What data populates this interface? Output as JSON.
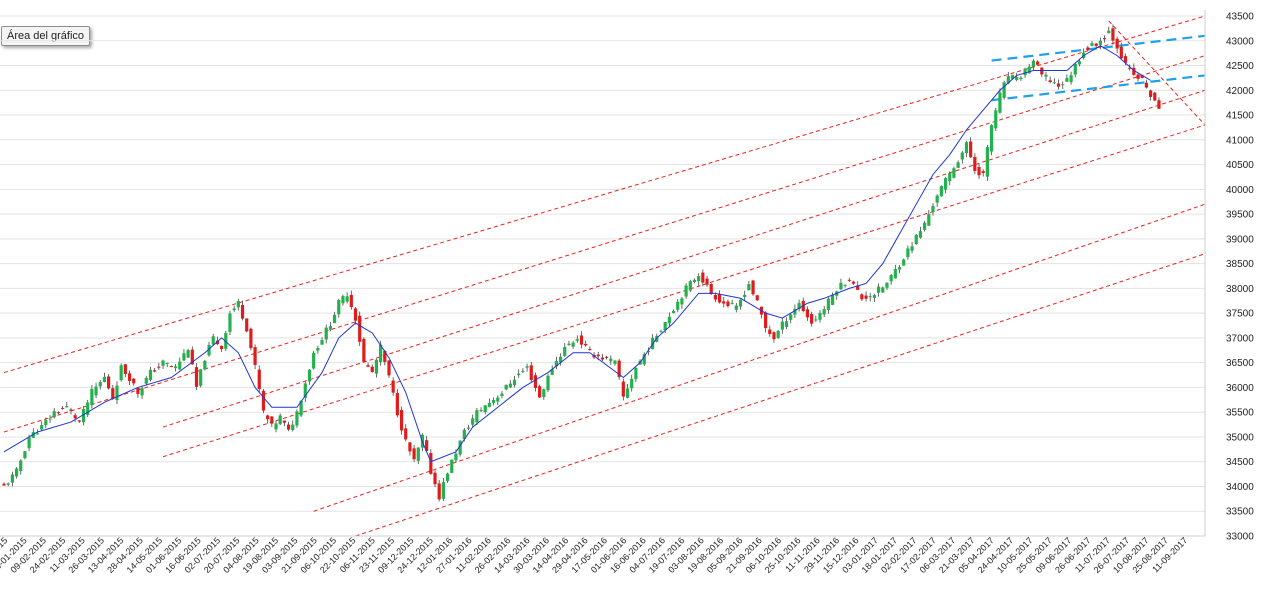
{
  "tooltip": "Área del gráfico",
  "chart_data": {
    "type": "candlestick",
    "y_ticks": [
      "33000",
      "33500",
      "34000",
      "34500",
      "35000",
      "35500",
      "36000",
      "36500",
      "37000",
      "37500",
      "38000",
      "38500",
      "39000",
      "39500",
      "40000",
      "40500",
      "41000",
      "41500",
      "42000",
      "42500",
      "43000",
      "43500"
    ],
    "ylim": [
      33000,
      43500
    ],
    "x_tick_labels": [
      "01-2015",
      "09-01-2015",
      "09-02-2015",
      "24-02-2015",
      "11-03-2015",
      "26-03-2015",
      "13-04-2015",
      "28-04-2015",
      "14-05-2015",
      "01-06-2015",
      "16-06-2015",
      "02-07-2015",
      "20-07-2015",
      "04-08-2015",
      "19-08-2015",
      "03-09-2015",
      "21-09-2015",
      "06-10-2015",
      "22-10-2015",
      "06-11-2015",
      "23-11-2015",
      "09-12-2015",
      "24-12-2015",
      "12-01-2016",
      "27-01-2016",
      "11-02-2016",
      "26-02-2016",
      "14-03-2016",
      "30-03-2016",
      "14-04-2016",
      "29-04-2016",
      "17-05-2016",
      "01-06-2016",
      "16-06-2016",
      "04-07-2016",
      "19-07-2016",
      "03-08-2016",
      "19-08-2016",
      "05-09-2016",
      "21-09-2016",
      "06-10-2016",
      "25-10-2016",
      "11-11-2016",
      "29-11-2016",
      "15-12-2016",
      "03-01-2017",
      "18-01-2017",
      "02-02-2017",
      "17-02-2017",
      "06-03-2017",
      "21-03-2017",
      "05-04-2017",
      "24-04-2017",
      "10-05-2017",
      "25-05-2017",
      "09-06-2017",
      "26-06-2017",
      "11-07-2017",
      "26-07-2017",
      "10-08-2017",
      "25-08-2017",
      "11-09-2017"
    ],
    "series": [
      {
        "values": [
          [
            0,
            34000
          ],
          [
            3,
            34300
          ],
          [
            6,
            35000
          ],
          [
            9,
            35200
          ],
          [
            12,
            35500
          ],
          [
            15,
            35600
          ],
          [
            18,
            35300
          ],
          [
            21,
            35900
          ],
          [
            24,
            36200
          ],
          [
            26,
            35800
          ],
          [
            28,
            36400
          ],
          [
            30,
            36200
          ],
          [
            32,
            35900
          ],
          [
            35,
            36300
          ],
          [
            38,
            36500
          ],
          [
            41,
            36400
          ],
          [
            44,
            36800
          ],
          [
            46,
            36000
          ],
          [
            48,
            36600
          ],
          [
            50,
            37000
          ],
          [
            52,
            36800
          ],
          [
            54,
            37500
          ],
          [
            56,
            37700
          ],
          [
            58,
            37200
          ],
          [
            60,
            36400
          ],
          [
            62,
            35500
          ],
          [
            64,
            35200
          ],
          [
            66,
            35400
          ],
          [
            68,
            35100
          ],
          [
            70,
            35500
          ],
          [
            72,
            36100
          ],
          [
            74,
            36700
          ],
          [
            76,
            37000
          ],
          [
            78,
            37300
          ],
          [
            80,
            37700
          ],
          [
            82,
            37900
          ],
          [
            84,
            37400
          ],
          [
            86,
            36500
          ],
          [
            88,
            36300
          ],
          [
            90,
            36800
          ],
          [
            92,
            36200
          ],
          [
            94,
            35500
          ],
          [
            96,
            34900
          ],
          [
            98,
            34500
          ],
          [
            100,
            35000
          ],
          [
            102,
            34300
          ],
          [
            104,
            33800
          ],
          [
            106,
            34300
          ],
          [
            108,
            34700
          ],
          [
            110,
            35100
          ],
          [
            113,
            35500
          ],
          [
            116,
            35700
          ],
          [
            119,
            35900
          ],
          [
            122,
            36200
          ],
          [
            125,
            36400
          ],
          [
            128,
            35800
          ],
          [
            131,
            36400
          ],
          [
            134,
            36800
          ],
          [
            137,
            37000
          ],
          [
            140,
            36700
          ],
          [
            143,
            36600
          ],
          [
            146,
            36500
          ],
          [
            148,
            35800
          ],
          [
            151,
            36400
          ],
          [
            154,
            36800
          ],
          [
            157,
            37200
          ],
          [
            160,
            37600
          ],
          [
            163,
            38000
          ],
          [
            166,
            38300
          ],
          [
            169,
            37900
          ],
          [
            172,
            37700
          ],
          [
            175,
            37600
          ],
          [
            178,
            38100
          ],
          [
            180,
            37700
          ],
          [
            182,
            37200
          ],
          [
            184,
            37000
          ],
          [
            187,
            37400
          ],
          [
            190,
            37700
          ],
          [
            193,
            37300
          ],
          [
            196,
            37600
          ],
          [
            199,
            38000
          ],
          [
            202,
            38200
          ],
          [
            205,
            37800
          ],
          [
            208,
            37900
          ],
          [
            211,
            38100
          ],
          [
            214,
            38500
          ],
          [
            217,
            38900
          ],
          [
            220,
            39300
          ],
          [
            223,
            39900
          ],
          [
            226,
            40300
          ],
          [
            228,
            40600
          ],
          [
            230,
            40900
          ],
          [
            232,
            40400
          ],
          [
            234,
            40300
          ],
          [
            236,
            41300
          ],
          [
            238,
            41900
          ],
          [
            240,
            42300
          ],
          [
            242,
            42200
          ],
          [
            244,
            42400
          ],
          [
            246,
            42600
          ],
          [
            248,
            42300
          ],
          [
            250,
            42200
          ],
          [
            252,
            42100
          ],
          [
            254,
            42200
          ],
          [
            256,
            42500
          ],
          [
            258,
            42800
          ],
          [
            260,
            42900
          ],
          [
            262,
            43000
          ],
          [
            264,
            43200
          ],
          [
            266,
            42900
          ],
          [
            268,
            42500
          ],
          [
            270,
            42300
          ],
          [
            272,
            42200
          ],
          [
            274,
            41900
          ],
          [
            276,
            41600
          ]
        ],
        "range": [
          0,
          276
        ]
      },
      {
        "values": [
          [
            0,
            34700
          ],
          [
            8,
            35100
          ],
          [
            16,
            35300
          ],
          [
            24,
            35700
          ],
          [
            32,
            36000
          ],
          [
            40,
            36200
          ],
          [
            48,
            36700
          ],
          [
            52,
            37000
          ],
          [
            56,
            36700
          ],
          [
            60,
            36000
          ],
          [
            64,
            35600
          ],
          [
            70,
            35600
          ],
          [
            76,
            36300
          ],
          [
            80,
            37000
          ],
          [
            84,
            37300
          ],
          [
            88,
            37100
          ],
          [
            92,
            36600
          ],
          [
            96,
            35900
          ],
          [
            100,
            34900
          ],
          [
            102,
            34500
          ],
          [
            108,
            34700
          ],
          [
            112,
            35200
          ],
          [
            118,
            35600
          ],
          [
            124,
            36000
          ],
          [
            130,
            36300
          ],
          [
            136,
            36700
          ],
          [
            140,
            36700
          ],
          [
            148,
            36200
          ],
          [
            152,
            36500
          ],
          [
            156,
            37000
          ],
          [
            160,
            37300
          ],
          [
            166,
            37900
          ],
          [
            170,
            37900
          ],
          [
            176,
            37800
          ],
          [
            182,
            37500
          ],
          [
            186,
            37400
          ],
          [
            192,
            37700
          ],
          [
            196,
            37800
          ],
          [
            202,
            38000
          ],
          [
            206,
            38100
          ],
          [
            210,
            38500
          ],
          [
            214,
            39100
          ],
          [
            218,
            39700
          ],
          [
            222,
            40300
          ],
          [
            226,
            40700
          ],
          [
            230,
            41200
          ],
          [
            234,
            41600
          ],
          [
            238,
            42000
          ],
          [
            242,
            42300
          ],
          [
            246,
            42400
          ],
          [
            250,
            42400
          ],
          [
            254,
            42400
          ],
          [
            258,
            42700
          ],
          [
            262,
            42900
          ],
          [
            266,
            42700
          ],
          [
            270,
            42400
          ],
          [
            274,
            42200
          ]
        ],
        "range": [
          0,
          276
        ]
      }
    ],
    "channel_lines_red": [
      {
        "from": [
          0,
          36300
        ],
        "to": [
          287,
          43500
        ]
      },
      {
        "from": [
          0,
          35100
        ],
        "to": [
          287,
          42700
        ]
      },
      {
        "from": [
          38,
          35200
        ],
        "to": [
          287,
          42000
        ]
      },
      {
        "from": [
          38,
          34600
        ],
        "to": [
          287,
          41300
        ]
      },
      {
        "from": [
          74,
          33500
        ],
        "to": [
          287,
          39700
        ]
      },
      {
        "from": [
          84,
          33000
        ],
        "to": [
          287,
          38700
        ]
      },
      {
        "from": [
          264,
          43400
        ],
        "to": [
          287,
          41300
        ]
      }
    ],
    "channel_lines_blue": [
      {
        "from": [
          236,
          42600
        ],
        "to": [
          287,
          43100
        ]
      },
      {
        "from": [
          236,
          41800
        ],
        "to": [
          287,
          42300
        ]
      }
    ]
  }
}
